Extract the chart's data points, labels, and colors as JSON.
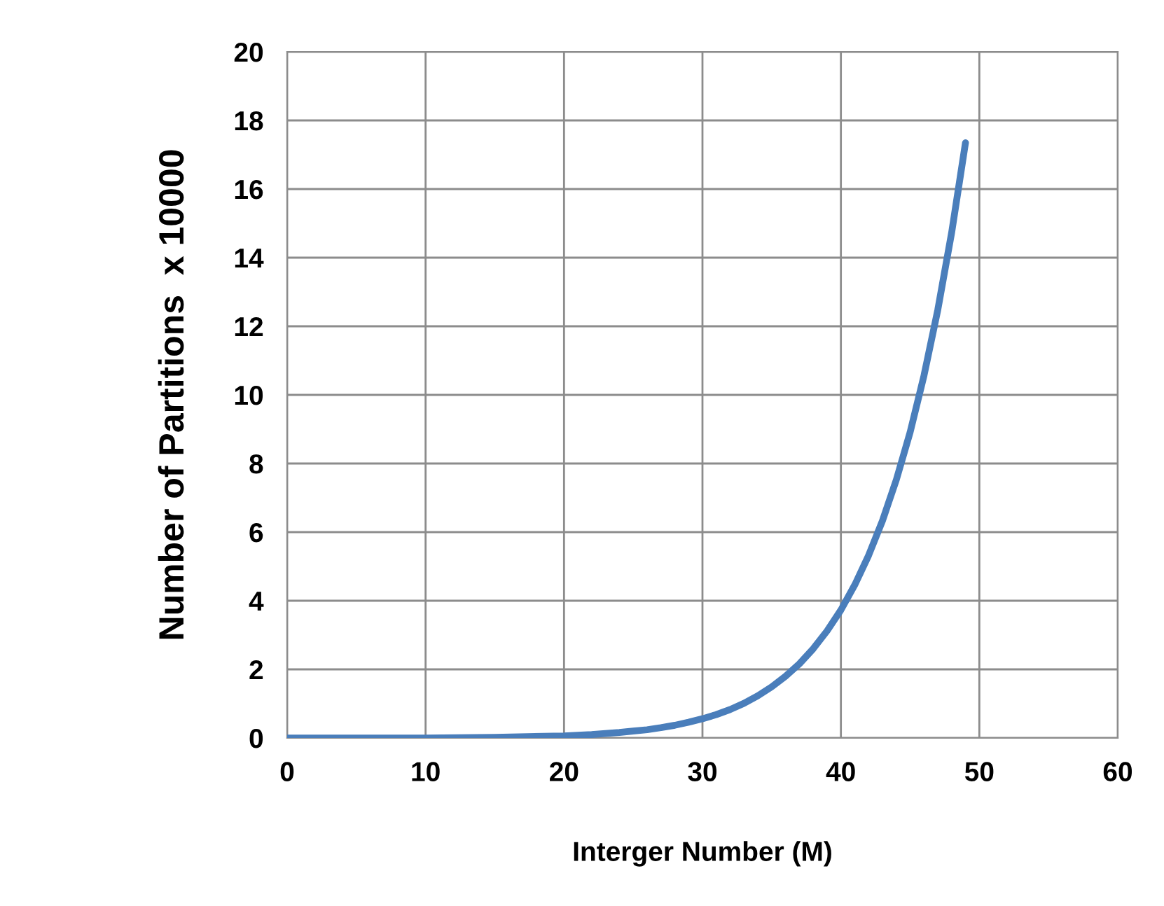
{
  "chart_data": {
    "type": "line",
    "xlabel": "Interger Number (M)",
    "ylabel": "Number of Partitions  x 10000",
    "xlim": [
      0,
      60
    ],
    "xticks": [
      0,
      10,
      20,
      30,
      40,
      50,
      60
    ],
    "ylim": [
      0,
      20
    ],
    "yticks": [
      0,
      2,
      4,
      6,
      8,
      10,
      12,
      14,
      16,
      18,
      20
    ],
    "grid": true,
    "marker": "none",
    "line_style": "solid",
    "series": [
      {
        "color": "#4a7ebb",
        "x": [
          0,
          5,
          10,
          15,
          20,
          22,
          24,
          25,
          26,
          27,
          28,
          29,
          30,
          31,
          32,
          33,
          34,
          35,
          36,
          37,
          38,
          39,
          40,
          41,
          42,
          43,
          44,
          45,
          46,
          47,
          48,
          49
        ],
        "values": [
          0,
          0,
          0,
          0.02,
          0.06,
          0.1,
          0.16,
          0.2,
          0.24,
          0.3,
          0.37,
          0.46,
          0.56,
          0.68,
          0.83,
          1.01,
          1.23,
          1.49,
          1.8,
          2.16,
          2.6,
          3.12,
          3.73,
          4.46,
          5.32,
          6.33,
          7.52,
          8.91,
          10.56,
          12.48,
          14.73,
          17.35
        ]
      }
    ]
  }
}
